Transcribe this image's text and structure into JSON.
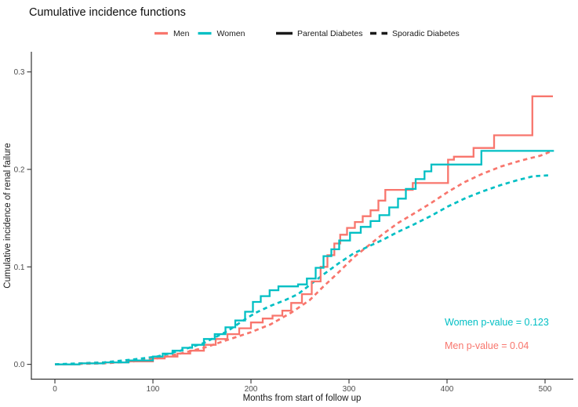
{
  "chart_data": {
    "type": "line",
    "title": "Cumulative incidence functions",
    "xlabel": "Months from start of follow up",
    "ylabel": "Cumulative incidence of renal failure",
    "x_ticks": [
      "0",
      "100",
      "200",
      "300",
      "400",
      "500"
    ],
    "y_ticks": [
      "0.0",
      "0.1",
      "0.2",
      "0.3"
    ],
    "xlim": [
      0,
      530
    ],
    "ylim": [
      0,
      0.32
    ],
    "grid": false,
    "legend_position": "top",
    "series": [
      {
        "name": "Men - Parental Diabetes",
        "color": "#F8766D",
        "linetype": "solid",
        "interp": "step",
        "points": [
          [
            0,
            0
          ],
          [
            25,
            0.001
          ],
          [
            50,
            0.002
          ],
          [
            75,
            0.003
          ],
          [
            100,
            0.006
          ],
          [
            112,
            0.008
          ],
          [
            125,
            0.011
          ],
          [
            138,
            0.014
          ],
          [
            152,
            0.02
          ],
          [
            164,
            0.026
          ],
          [
            176,
            0.031
          ],
          [
            188,
            0.037
          ],
          [
            200,
            0.043
          ],
          [
            212,
            0.047
          ],
          [
            222,
            0.05
          ],
          [
            232,
            0.055
          ],
          [
            241,
            0.063
          ],
          [
            252,
            0.072
          ],
          [
            262,
            0.085
          ],
          [
            271,
            0.1
          ],
          [
            278,
            0.112
          ],
          [
            285,
            0.124
          ],
          [
            291,
            0.133
          ],
          [
            298,
            0.14
          ],
          [
            306,
            0.146
          ],
          [
            314,
            0.152
          ],
          [
            322,
            0.158
          ],
          [
            330,
            0.168
          ],
          [
            337,
            0.179
          ],
          [
            365,
            0.186
          ],
          [
            401,
            0.21
          ],
          [
            407,
            0.213
          ],
          [
            427,
            0.222
          ],
          [
            448,
            0.235
          ],
          [
            487,
            0.275
          ],
          [
            508,
            0.275
          ]
        ]
      },
      {
        "name": "Women - Parental Diabetes",
        "color": "#00BFC4",
        "linetype": "solid",
        "interp": "step",
        "points": [
          [
            0,
            0
          ],
          [
            25,
            0.001
          ],
          [
            50,
            0.002
          ],
          [
            75,
            0.004
          ],
          [
            100,
            0.008
          ],
          [
            110,
            0.011
          ],
          [
            120,
            0.014
          ],
          [
            130,
            0.017
          ],
          [
            140,
            0.02
          ],
          [
            152,
            0.026
          ],
          [
            163,
            0.031
          ],
          [
            174,
            0.038
          ],
          [
            184,
            0.045
          ],
          [
            194,
            0.054
          ],
          [
            202,
            0.064
          ],
          [
            210,
            0.07
          ],
          [
            219,
            0.076
          ],
          [
            228,
            0.08
          ],
          [
            248,
            0.082
          ],
          [
            257,
            0.088
          ],
          [
            266,
            0.099
          ],
          [
            274,
            0.111
          ],
          [
            282,
            0.118
          ],
          [
            290,
            0.127
          ],
          [
            301,
            0.135
          ],
          [
            312,
            0.141
          ],
          [
            322,
            0.147
          ],
          [
            331,
            0.153
          ],
          [
            341,
            0.161
          ],
          [
            350,
            0.17
          ],
          [
            358,
            0.18
          ],
          [
            368,
            0.19
          ],
          [
            377,
            0.198
          ],
          [
            384,
            0.205
          ],
          [
            435,
            0.219
          ],
          [
            509,
            0.219
          ]
        ]
      },
      {
        "name": "Men - Sporadic Diabetes",
        "color": "#F8766D",
        "linetype": "dashed",
        "interp": "linear",
        "points": [
          [
            0,
            0
          ],
          [
            50,
            0.001
          ],
          [
            80,
            0.003
          ],
          [
            104,
            0.006
          ],
          [
            128,
            0.011
          ],
          [
            152,
            0.017
          ],
          [
            176,
            0.025
          ],
          [
            200,
            0.033
          ],
          [
            220,
            0.041
          ],
          [
            241,
            0.053
          ],
          [
            260,
            0.066
          ],
          [
            273,
            0.079
          ],
          [
            290,
            0.095
          ],
          [
            305,
            0.11
          ],
          [
            320,
            0.122
          ],
          [
            335,
            0.134
          ],
          [
            350,
            0.145
          ],
          [
            365,
            0.154
          ],
          [
            383,
            0.165
          ],
          [
            401,
            0.177
          ],
          [
            418,
            0.187
          ],
          [
            435,
            0.195
          ],
          [
            455,
            0.203
          ],
          [
            475,
            0.209
          ],
          [
            495,
            0.214
          ],
          [
            505,
            0.218
          ]
        ]
      },
      {
        "name": "Women - Sporadic Diabetes",
        "color": "#00BFC4",
        "linetype": "dashed",
        "interp": "linear",
        "points": [
          [
            0,
            0
          ],
          [
            50,
            0.002
          ],
          [
            80,
            0.005
          ],
          [
            104,
            0.008
          ],
          [
            128,
            0.014
          ],
          [
            152,
            0.022
          ],
          [
            176,
            0.034
          ],
          [
            195,
            0.047
          ],
          [
            205,
            0.053
          ],
          [
            220,
            0.06
          ],
          [
            235,
            0.066
          ],
          [
            248,
            0.072
          ],
          [
            262,
            0.083
          ],
          [
            275,
            0.093
          ],
          [
            290,
            0.104
          ],
          [
            305,
            0.114
          ],
          [
            320,
            0.121
          ],
          [
            335,
            0.128
          ],
          [
            350,
            0.136
          ],
          [
            365,
            0.143
          ],
          [
            383,
            0.152
          ],
          [
            401,
            0.162
          ],
          [
            420,
            0.171
          ],
          [
            438,
            0.178
          ],
          [
            455,
            0.184
          ],
          [
            472,
            0.189
          ],
          [
            488,
            0.193
          ],
          [
            505,
            0.194
          ]
        ]
      }
    ],
    "annotations": [
      {
        "text": "Women p-value = 0.123",
        "color": "#00BFC4"
      },
      {
        "text": "Men p-value = 0.04",
        "color": "#F8766D"
      }
    ]
  },
  "legend": {
    "key_color": "#1A1A1A",
    "color_items": [
      {
        "label": "Men",
        "color": "#F8766D"
      },
      {
        "label": "Women",
        "color": "#00BFC4"
      }
    ],
    "linetype_items": [
      {
        "label": "Parental Diabetes",
        "linetype": "solid"
      },
      {
        "label": "Sporadic Diabetes",
        "linetype": "dashed"
      }
    ]
  },
  "colors": {
    "men": "#F8766D",
    "women": "#00BFC4",
    "axis": "#333333"
  }
}
